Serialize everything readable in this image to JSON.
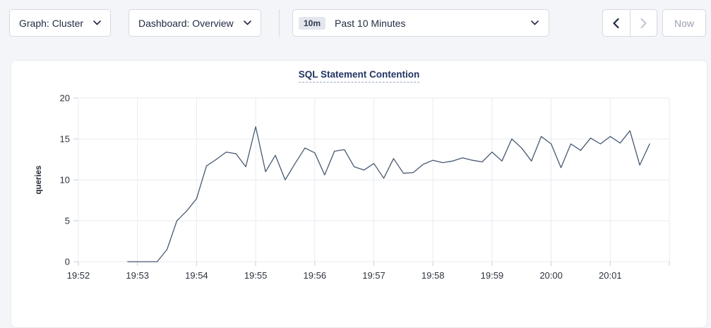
{
  "toolbar": {
    "graph_dropdown": {
      "label": "Graph: Cluster"
    },
    "dashboard_dropdown": {
      "label": "Dashboard: Overview"
    },
    "time_selector": {
      "badge": "10m",
      "label": "Past 10 Minutes"
    },
    "now_button_label": "Now",
    "icons": {
      "graph_dropdown": "chevron-down",
      "dashboard_dropdown": "chevron-down",
      "time_selector": "chevron-down",
      "prev": "chevron-left",
      "next": "chevron-right"
    },
    "prev_enabled": true,
    "next_enabled": false,
    "now_enabled": false
  },
  "chart_data": {
    "type": "line",
    "title": "SQL Statement Contention",
    "ylabel": "queries",
    "ylim": [
      0,
      20
    ],
    "yticks": [
      0,
      5,
      10,
      15,
      20
    ],
    "grid": true,
    "legend": false,
    "x_axis": {
      "tick_labels": [
        "19:52",
        "19:53",
        "19:54",
        "19:55",
        "19:56",
        "19:57",
        "19:58",
        "19:59",
        "20:00",
        "20:01"
      ],
      "tick_seconds": [
        0,
        60,
        120,
        180,
        240,
        300,
        360,
        420,
        480,
        540
      ],
      "domain_seconds": [
        0,
        600
      ],
      "base_time": "19:52"
    },
    "series": [
      {
        "name": "queries",
        "color": "#475872",
        "x_seconds": [
          50,
          60,
          70,
          80,
          90,
          100,
          110,
          120,
          130,
          140,
          150,
          160,
          170,
          180,
          190,
          200,
          210,
          220,
          230,
          240,
          250,
          260,
          270,
          280,
          290,
          300,
          310,
          320,
          330,
          340,
          350,
          360,
          370,
          380,
          390,
          400,
          410,
          420,
          430,
          440,
          450,
          460,
          470,
          480,
          490,
          500,
          510,
          520,
          530,
          540,
          550,
          560,
          570,
          580
        ],
        "values": [
          0,
          0,
          0,
          0,
          1.5,
          5,
          6.2,
          7.7,
          11.7,
          12.5,
          13.4,
          13.2,
          11.6,
          16.5,
          11,
          13,
          10,
          12,
          13.9,
          13.3,
          10.6,
          13.5,
          13.7,
          11.6,
          11.2,
          12,
          10.2,
          12.6,
          10.8,
          10.9,
          11.9,
          12.4,
          12.1,
          12.3,
          12.7,
          12.4,
          12.2,
          13.4,
          12.3,
          15,
          13.9,
          12.3,
          15.3,
          14.4,
          11.5,
          14.4,
          13.6,
          15.1,
          14.4,
          15.3,
          14.5,
          16,
          11.8,
          14.4
        ]
      }
    ],
    "colors": {
      "line": "#475872",
      "grid": "#e9ebf1",
      "title": "#223462",
      "tick_text": "#2d333d"
    }
  }
}
